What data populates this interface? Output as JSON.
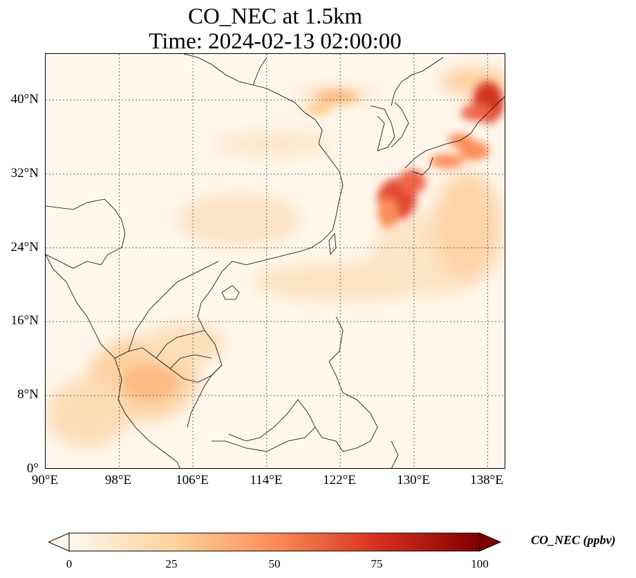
{
  "title": {
    "line1": "CO_NEC at 1.5km",
    "line2": "Time: 2024-02-13 02:00:00"
  },
  "map": {
    "lon_range": [
      90,
      140
    ],
    "lat_range": [
      0,
      45
    ],
    "lon_ticks": [
      "90°E",
      "98°E",
      "106°E",
      "114°E",
      "122°E",
      "130°E",
      "138°E"
    ],
    "lat_ticks": [
      "0°",
      "8°N",
      "16°N",
      "24°N",
      "32°N",
      "40°N"
    ],
    "gridlines": true,
    "gridline_style": "dotted",
    "colormap": "OrRd",
    "colormap_colors": [
      "#fff7ec",
      "#fdd49e",
      "#fc8d59",
      "#d7301f",
      "#7f0000"
    ]
  },
  "colorbar": {
    "label": "CO_NEC (ppbv)",
    "min": 0,
    "max": 100,
    "ticks": [
      "0",
      "25",
      "50",
      "75",
      "100"
    ],
    "extend": "both",
    "orientation": "horizontal"
  }
}
